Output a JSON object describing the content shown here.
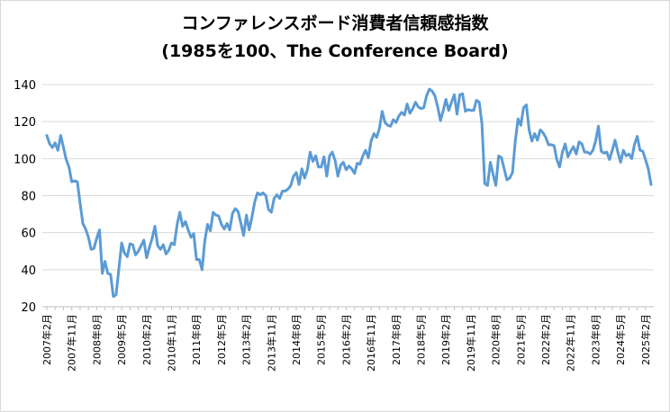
{
  "chart_data": {
    "type": "line",
    "title": "コンファレンスボード消費者信頼感指数",
    "subtitle": "(1985を100、The Conference Board)",
    "xlabel": "",
    "ylabel": "",
    "ylim": [
      20,
      140
    ],
    "yticks": [
      20,
      40,
      60,
      80,
      100,
      120,
      140
    ],
    "x_tick_labels": [
      "2007年2月",
      "2007年11月",
      "2008年8月",
      "2009年5月",
      "2010年2月",
      "2010年11月",
      "2011年8月",
      "2012年5月",
      "2013年2月",
      "2013年11月",
      "2014年8月",
      "2015年5月",
      "2016年2月",
      "2016年11月",
      "2017年8月",
      "2018年5月",
      "2019年2月",
      "2019年11月",
      "2020年8月",
      "2021年5月",
      "2022年2月",
      "2022年11月",
      "2023年8月",
      "2024年5月",
      "2025年2月"
    ],
    "grid": "horizontal",
    "line_color": "#5b9bd5",
    "series": [
      {
        "name": "",
        "x": [
          "2007-02",
          "2007-03",
          "2007-04",
          "2007-05",
          "2007-06",
          "2007-07",
          "2007-08",
          "2007-09",
          "2007-10",
          "2007-11",
          "2007-12",
          "2008-01",
          "2008-02",
          "2008-03",
          "2008-04",
          "2008-05",
          "2008-06",
          "2008-07",
          "2008-08",
          "2008-09",
          "2008-10",
          "2008-11",
          "2008-12",
          "2009-01",
          "2009-02",
          "2009-03",
          "2009-04",
          "2009-05",
          "2009-06",
          "2009-07",
          "2009-08",
          "2009-09",
          "2009-10",
          "2009-11",
          "2009-12",
          "2010-01",
          "2010-02",
          "2010-03",
          "2010-04",
          "2010-05",
          "2010-06",
          "2010-07",
          "2010-08",
          "2010-09",
          "2010-10",
          "2010-11",
          "2010-12",
          "2011-01",
          "2011-02",
          "2011-03",
          "2011-04",
          "2011-05",
          "2011-06",
          "2011-07",
          "2011-08",
          "2011-09",
          "2011-10",
          "2011-11",
          "2011-12",
          "2012-01",
          "2012-02",
          "2012-03",
          "2012-04",
          "2012-05",
          "2012-06",
          "2012-07",
          "2012-08",
          "2012-09",
          "2012-10",
          "2012-11",
          "2012-12",
          "2013-01",
          "2013-02",
          "2013-03",
          "2013-04",
          "2013-05",
          "2013-06",
          "2013-07",
          "2013-08",
          "2013-09",
          "2013-10",
          "2013-11",
          "2013-12",
          "2014-01",
          "2014-02",
          "2014-03",
          "2014-04",
          "2014-05",
          "2014-06",
          "2014-07",
          "2014-08",
          "2014-09",
          "2014-10",
          "2014-11",
          "2014-12",
          "2015-01",
          "2015-02",
          "2015-03",
          "2015-04",
          "2015-05",
          "2015-06",
          "2015-07",
          "2015-08",
          "2015-09",
          "2015-10",
          "2015-11",
          "2015-12",
          "2016-01",
          "2016-02",
          "2016-03",
          "2016-04",
          "2016-05",
          "2016-06",
          "2016-07",
          "2016-08",
          "2016-09",
          "2016-10",
          "2016-11",
          "2016-12",
          "2017-01",
          "2017-02",
          "2017-03",
          "2017-04",
          "2017-05",
          "2017-06",
          "2017-07",
          "2017-08",
          "2017-09",
          "2017-10",
          "2017-11",
          "2017-12",
          "2018-01",
          "2018-02",
          "2018-03",
          "2018-04",
          "2018-05",
          "2018-06",
          "2018-07",
          "2018-08",
          "2018-09",
          "2018-10",
          "2018-11",
          "2018-12",
          "2019-01",
          "2019-02",
          "2019-03",
          "2019-04",
          "2019-05",
          "2019-06",
          "2019-07",
          "2019-08",
          "2019-09",
          "2019-10",
          "2019-11",
          "2019-12",
          "2020-01",
          "2020-02",
          "2020-03",
          "2020-04",
          "2020-05",
          "2020-06",
          "2020-07",
          "2020-08",
          "2020-09",
          "2020-10",
          "2020-11",
          "2020-12",
          "2021-01",
          "2021-02",
          "2021-03",
          "2021-04",
          "2021-05",
          "2021-06",
          "2021-07",
          "2021-08",
          "2021-09",
          "2021-10",
          "2021-11",
          "2021-12",
          "2022-01",
          "2022-02",
          "2022-03",
          "2022-04",
          "2022-05",
          "2022-06",
          "2022-07",
          "2022-08",
          "2022-09",
          "2022-10",
          "2022-11",
          "2022-12",
          "2023-01",
          "2023-02",
          "2023-03",
          "2023-04",
          "2023-05",
          "2023-06",
          "2023-07",
          "2023-08",
          "2023-09",
          "2023-10",
          "2023-11",
          "2023-12",
          "2024-01",
          "2024-02",
          "2024-03",
          "2024-04",
          "2024-05",
          "2024-06",
          "2024-07",
          "2024-08",
          "2024-09",
          "2024-10",
          "2024-11",
          "2024-12",
          "2025-01",
          "2025-02",
          "2025-03",
          "2025-04"
        ],
        "values": [
          112.5,
          108,
          106,
          108.5,
          104.5,
          112.5,
          106,
          99.5,
          95.5,
          87.5,
          88,
          87.5,
          76,
          65,
          62,
          57.5,
          51,
          51.5,
          57,
          61.5,
          38,
          44.5,
          38,
          37.5,
          25.5,
          26.5,
          40.5,
          54.5,
          49,
          47,
          54,
          53.5,
          48,
          50,
          53,
          56,
          46.5,
          52,
          57,
          63.5,
          53,
          51,
          53.5,
          48.5,
          50.5,
          54.5,
          53.5,
          64.5,
          71,
          63.5,
          66,
          61.5,
          57.5,
          59.5,
          45.5,
          45.5,
          40,
          55.5,
          64.5,
          61,
          71,
          69.5,
          69,
          64.5,
          62,
          65,
          61.5,
          70.5,
          73,
          71.5,
          65,
          58.5,
          69.5,
          61.5,
          68.5,
          76.5,
          81.5,
          80.5,
          81.5,
          80,
          72.5,
          71,
          78.5,
          80.5,
          78.5,
          82.5,
          82.5,
          83.5,
          85.5,
          90.5,
          92.5,
          86,
          94.5,
          89.5,
          94,
          103.5,
          98.5,
          101.5,
          95.5,
          95.5,
          101,
          90.5,
          101.5,
          103.5,
          99,
          90.5,
          96.5,
          98,
          94,
          96,
          94.5,
          92,
          97.5,
          97,
          101.5,
          104.5,
          100.5,
          109.5,
          113.5,
          111.5,
          116.5,
          125.5,
          119.5,
          118,
          117.5,
          121,
          119.5,
          123,
          125,
          123.5,
          129.5,
          124.5,
          127,
          130.5,
          128,
          127,
          127.5,
          134,
          137.5,
          136.5,
          134,
          128,
          120.5,
          126,
          132,
          126,
          130.5,
          134.5,
          124,
          134.5,
          135,
          125.5,
          126.5,
          126,
          126,
          131.5,
          130.5,
          118.5,
          86.5,
          85.5,
          98,
          91.5,
          85.5,
          101.5,
          100.5,
          94.5,
          88.5,
          89.5,
          92.5,
          109.5,
          121.5,
          118,
          127.5,
          129,
          115.5,
          109.5,
          113.5,
          110,
          115.5,
          114,
          111.5,
          107.5,
          107.5,
          107,
          99.5,
          95.5,
          103.5,
          108,
          101,
          104,
          106.5,
          102.5,
          109,
          108,
          103.5,
          103.5,
          102.5,
          104.5,
          109.5,
          117.5,
          104,
          103,
          103.5,
          99.5,
          104.5,
          110,
          103.5,
          98,
          104.5,
          101.5,
          102.5,
          100,
          107.5,
          112,
          104.5,
          104,
          99.5,
          94.5,
          86
        ]
      }
    ]
  }
}
